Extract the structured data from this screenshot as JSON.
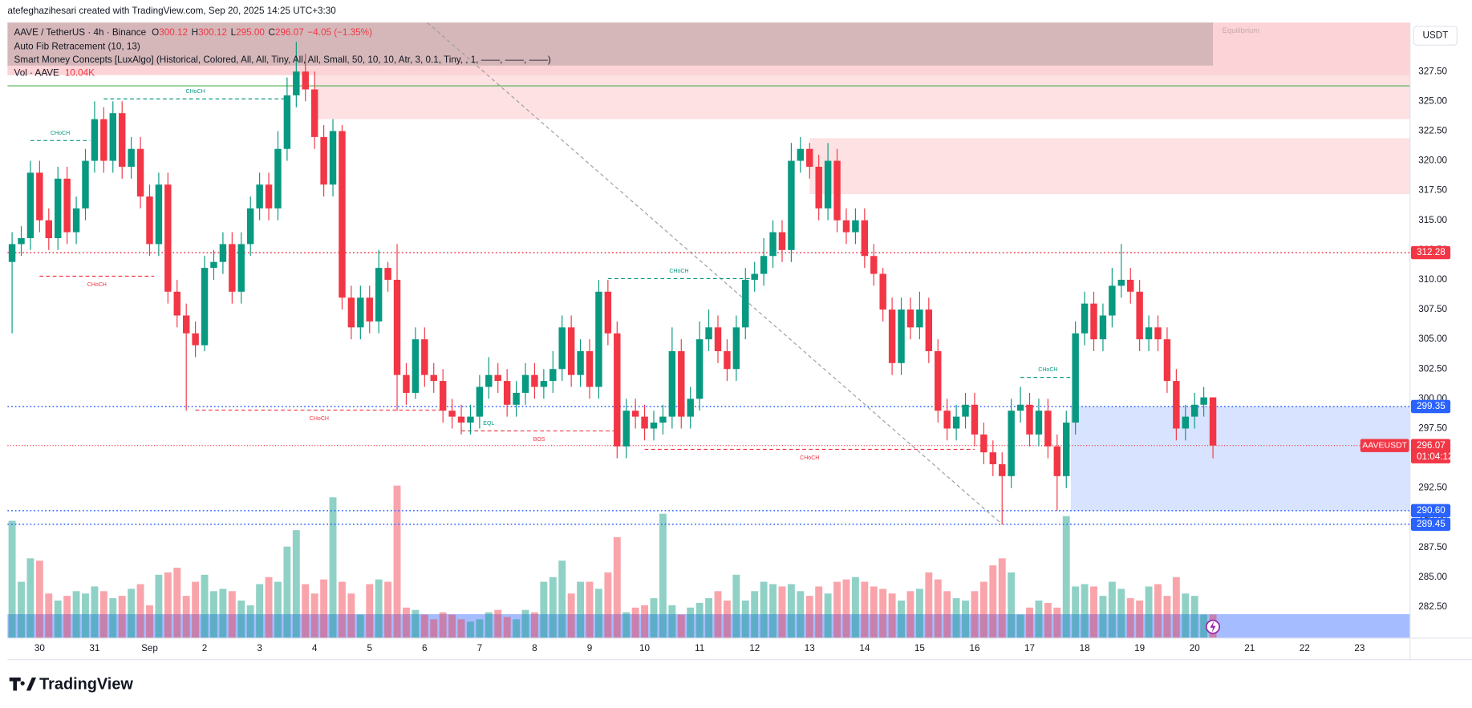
{
  "header": {
    "attribution": "atefeghazihesari created with TradingView.com, Sep 20, 2025 14:25 UTC+3:30",
    "brand": "TradingView"
  },
  "chart_data": {
    "type": "candlestick",
    "title": "AAVE / TetherUS · 4h · Binance",
    "legend": {
      "ohlc": [
        {
          "label": "O",
          "value": "300.12"
        },
        {
          "label": "H",
          "value": "300.12"
        },
        {
          "label": "L",
          "value": "295.00"
        },
        {
          "label": "C",
          "value": "296.07"
        }
      ],
      "change": "−4.05 (−1.35%)",
      "indicators": [
        "Auto Fib Retracement (10, 13)",
        "Smart Money Concepts [LuxAlgo] (Historical, Colored, All, All, Tiny, All, All, Small, 50, 10, 10, Atr, 3, 0.1, Tiny, , 1, ——, ——, ——)"
      ],
      "volume": {
        "label": "Vol · AAVE",
        "value": "10.04K"
      }
    },
    "currency": "USDT",
    "up_color": "#089981",
    "down_color": "#f23645",
    "volume_up_color": "rgba(8,153,129,0.45)",
    "volume_down_color": "rgba(242,54,69,0.45)",
    "grid": false,
    "xlim": [
      -0.5,
      152.5
    ],
    "ylim": [
      279.89,
      331.62
    ],
    "vlim": [
      0,
      262.4
    ],
    "xticks": [
      {
        "value": 3,
        "label": "30"
      },
      {
        "value": 9,
        "label": "31"
      },
      {
        "value": 15,
        "label": "Sep"
      },
      {
        "value": 21,
        "label": "2"
      },
      {
        "value": 27,
        "label": "3"
      },
      {
        "value": 33,
        "label": "4"
      },
      {
        "value": 39,
        "label": "5"
      },
      {
        "value": 45,
        "label": "6"
      },
      {
        "value": 51,
        "label": "7"
      },
      {
        "value": 57,
        "label": "8"
      },
      {
        "value": 63,
        "label": "9"
      },
      {
        "value": 69,
        "label": "10"
      },
      {
        "value": 75,
        "label": "11"
      },
      {
        "value": 81,
        "label": "12"
      },
      {
        "value": 87,
        "label": "13"
      },
      {
        "value": 93,
        "label": "14"
      },
      {
        "value": 99,
        "label": "15"
      },
      {
        "value": 105,
        "label": "16"
      },
      {
        "value": 111,
        "label": "17"
      },
      {
        "value": 117,
        "label": "18"
      },
      {
        "value": 123,
        "label": "19"
      },
      {
        "value": 129,
        "label": "20"
      },
      {
        "value": 135,
        "label": "21"
      },
      {
        "value": 141,
        "label": "22"
      },
      {
        "value": 147,
        "label": "23"
      }
    ],
    "yticks": [
      {
        "value": 282.5,
        "label": "282.50"
      },
      {
        "value": 285,
        "label": "285.00"
      },
      {
        "value": 287.5,
        "label": "287.50"
      },
      {
        "value": 290,
        "label": "290.00"
      },
      {
        "value": 292.5,
        "label": "292.50"
      },
      {
        "value": 295,
        "label": "295.00"
      },
      {
        "value": 297.5,
        "label": "297.50"
      },
      {
        "value": 300,
        "label": "300.00"
      },
      {
        "value": 302.5,
        "label": "302.50"
      },
      {
        "value": 305,
        "label": "305.00"
      },
      {
        "value": 307.5,
        "label": "307.50"
      },
      {
        "value": 310,
        "label": "310.00"
      },
      {
        "value": 312.5,
        "label": "312.50"
      },
      {
        "value": 315,
        "label": "315.00"
      },
      {
        "value": 317.5,
        "label": "317.50"
      },
      {
        "value": 320,
        "label": "320.00"
      },
      {
        "value": 322.5,
        "label": "322.50"
      },
      {
        "value": 325,
        "label": "325.00"
      },
      {
        "value": 327.5,
        "label": "327.50"
      }
    ],
    "open": [
      311.5,
      313,
      313.5,
      319,
      315,
      313.5,
      318.5,
      314,
      316,
      320,
      323.5,
      320,
      324,
      319.5,
      321,
      317,
      313,
      318,
      309,
      307,
      305.5,
      304.5,
      311,
      311.5,
      313,
      309,
      313,
      316,
      318,
      316,
      321,
      325.5,
      327.5,
      326,
      322,
      318,
      322.5,
      308.5,
      306,
      308.5,
      306.5,
      311,
      310,
      302,
      300.5,
      305,
      302,
      301.5,
      299,
      298.5,
      298,
      298.5,
      301,
      302,
      301.5,
      299.5,
      300.5,
      302,
      301,
      301.5,
      302.5,
      306,
      302,
      304,
      301,
      309,
      305.5,
      296,
      299,
      298.5,
      297.5,
      298,
      298.5,
      304,
      298.5,
      300,
      305,
      306,
      304,
      302.5,
      306,
      310,
      310.5,
      312,
      314,
      312.5,
      320,
      321,
      319.5,
      316,
      320,
      315,
      314,
      315,
      312,
      310.5,
      307.5,
      303,
      307.5,
      306,
      307.5,
      304,
      299,
      297.5,
      298.5,
      299.5,
      297,
      295.5,
      294.5,
      293.5,
      299,
      299.5,
      297,
      299,
      296,
      293.5,
      298,
      305.5,
      308,
      305,
      307,
      309.5,
      310,
      309,
      305,
      306,
      305,
      301.5,
      297.5,
      298.5,
      299.5,
      300.12
    ],
    "high": [
      314,
      314.5,
      320,
      320,
      316,
      319.5,
      319.5,
      317,
      321,
      325,
      324.5,
      325,
      325,
      322,
      322,
      318,
      319,
      319,
      310,
      308,
      306.5,
      312,
      312.5,
      314,
      314,
      314,
      317,
      319,
      319,
      322.5,
      327,
      330,
      329,
      327.5,
      323,
      323.5,
      323,
      309.5,
      309.5,
      309.5,
      312.5,
      311.5,
      313,
      303,
      306,
      306,
      303,
      302.5,
      300,
      299.5,
      299.5,
      302,
      303.5,
      303,
      302.5,
      301.5,
      303,
      303,
      302.5,
      304,
      307,
      307,
      305,
      305,
      310,
      310,
      306.5,
      300,
      300,
      299.5,
      299,
      299.5,
      306,
      305,
      301,
      306.5,
      307.5,
      307,
      305,
      307,
      311,
      311.5,
      313.5,
      315,
      315,
      321.5,
      322,
      321.5,
      320.5,
      321.5,
      321,
      316,
      316,
      316,
      313,
      311,
      308.5,
      308.5,
      308.5,
      309,
      308.5,
      305,
      300,
      299.5,
      300.5,
      300.5,
      298,
      296.5,
      295.5,
      300,
      301,
      300.5,
      300,
      300,
      297,
      299,
      306.5,
      309,
      309,
      308,
      311,
      313,
      311,
      310,
      307,
      307,
      306,
      302.5,
      299.5,
      300.5,
      301,
      300.12
    ],
    "low": [
      305.5,
      312,
      312.5,
      314,
      312.5,
      312.5,
      313,
      313,
      315,
      319,
      319,
      319,
      318.5,
      318.5,
      316,
      312,
      312,
      308,
      306,
      299,
      303.5,
      304,
      310,
      310.5,
      308,
      308,
      312,
      315,
      315,
      315,
      320,
      324.5,
      325,
      321,
      317,
      317,
      307.5,
      305,
      305,
      305.5,
      305.5,
      309,
      299,
      299.5,
      300,
      301,
      300.5,
      298,
      297.5,
      297,
      297,
      297.5,
      300,
      300.5,
      298.5,
      298.5,
      299.5,
      300,
      300,
      300.5,
      301.5,
      301,
      301,
      300,
      300,
      304.5,
      295,
      295,
      297.5,
      296.5,
      296.5,
      297,
      297.5,
      297.5,
      297.5,
      299,
      304,
      303,
      301.5,
      301.5,
      305,
      309,
      309.5,
      311,
      311.5,
      311.5,
      319,
      318.5,
      315,
      315,
      314,
      313,
      313,
      311,
      309.5,
      306.5,
      302,
      302,
      305,
      305,
      303,
      298,
      296.5,
      296.5,
      297.5,
      296,
      294.5,
      293.5,
      289.45,
      292.5,
      298,
      296,
      296,
      295,
      290.6,
      292.5,
      297,
      304.5,
      304,
      304,
      306,
      308.5,
      308,
      304,
      304,
      304,
      300.5,
      296.5,
      296.5,
      297.5,
      298.5,
      295
    ],
    "close": [
      313,
      313.5,
      319,
      315,
      313.5,
      318.5,
      314,
      316,
      320,
      323.5,
      320,
      324,
      319.5,
      321,
      317,
      313,
      318,
      309,
      307,
      305.5,
      304.5,
      311,
      311.5,
      313,
      309,
      313,
      316,
      318,
      316,
      321,
      325.5,
      327.5,
      326,
      322,
      318,
      322.5,
      308.5,
      306,
      308.5,
      306.5,
      311,
      310,
      302,
      300.5,
      305,
      302,
      301.5,
      299,
      298.5,
      298,
      298.5,
      301,
      302,
      301.5,
      299.5,
      300.5,
      302,
      301,
      301.5,
      302.5,
      306,
      302,
      304,
      301,
      309,
      305.5,
      296,
      299,
      298.5,
      297.5,
      298,
      298.5,
      304,
      298.5,
      300,
      305,
      306,
      304,
      302.5,
      306,
      310,
      310.5,
      312,
      314,
      312.5,
      320,
      321,
      319.5,
      316,
      320,
      315,
      314,
      315,
      312,
      310.5,
      307.5,
      303,
      307.5,
      306,
      307.5,
      304,
      299,
      297.5,
      298.5,
      299.5,
      297,
      295.5,
      294.5,
      293.5,
      299,
      299.5,
      297,
      299,
      296,
      293.5,
      298,
      305.5,
      308,
      305,
      307,
      309.5,
      310,
      309,
      305,
      306,
      305,
      301.5,
      297.5,
      298.5,
      299.5,
      300.12,
      296.07
    ],
    "volume": [
      50,
      24,
      34,
      33,
      19,
      16,
      18,
      20,
      19,
      22,
      20,
      17,
      18,
      21,
      23,
      14,
      27,
      28,
      30,
      18,
      24,
      27,
      20,
      21,
      20,
      16,
      14,
      23,
      26,
      24,
      39,
      46,
      23,
      19,
      25,
      60,
      24,
      19,
      10,
      23,
      25,
      24,
      65,
      13,
      12,
      10,
      8,
      11,
      10,
      8,
      7,
      8,
      11,
      12,
      9,
      8,
      12,
      11,
      24,
      26,
      33,
      19,
      24,
      24,
      21,
      28,
      43,
      11,
      13,
      14,
      17,
      53,
      14,
      10,
      13,
      15,
      17,
      20,
      16,
      27,
      16,
      20,
      24,
      23,
      22,
      23,
      20,
      18,
      22,
      19,
      24,
      25,
      26,
      24,
      22,
      21,
      19,
      16,
      20,
      21,
      28,
      25,
      20,
      17,
      16,
      20,
      24,
      31,
      34,
      28,
      10,
      13,
      16,
      15,
      13,
      52,
      22,
      23,
      22,
      18,
      24,
      21,
      17,
      16,
      22,
      23,
      18,
      26,
      19,
      18,
      10,
      10.04
    ],
    "zones": [
      {
        "from": -0.5,
        "to": 152.5,
        "low": 327.2,
        "high": 331.62,
        "color": "rgba(242,54,69,0.22)"
      },
      {
        "from": -0.5,
        "to": 131,
        "low": 328.0,
        "high": 331.62,
        "color": "rgba(110,110,110,0.28)",
        "label": "Equilibrium"
      },
      {
        "from": 33,
        "to": 152.5,
        "low": 323.5,
        "high": 327.2,
        "color": "rgba(242,54,69,0.15)"
      },
      {
        "from": 87,
        "to": 152.5,
        "low": 317.2,
        "high": 321.9,
        "color": "rgba(242,54,69,0.15)"
      },
      {
        "from": 115.5,
        "to": 152.5,
        "low": 290.6,
        "high": 299.35,
        "color": "rgba(41,98,255,0.18)"
      },
      {
        "from": -0.5,
        "to": 152.5,
        "low": 279.89,
        "high": 281.9,
        "color": "rgba(41,98,255,0.42)"
      }
    ],
    "levels": [
      {
        "value": 326.3,
        "color": "#4caf50"
      }
    ],
    "trendline": {
      "x": [
        45.3,
        108
      ],
      "y": [
        331.62,
        289.45
      ],
      "color": "#9e9e9e"
    },
    "structures": [
      {
        "label": "CHoCH",
        "x": [
          2,
          8.5
        ],
        "price": 321.7,
        "color": "#089981"
      },
      {
        "label": "CHoCH",
        "x": [
          10,
          30
        ],
        "price": 325.2,
        "color": "#089981"
      },
      {
        "label": "CHoCH",
        "x": [
          3,
          15.5
        ],
        "price": 310.3,
        "color": "#f23645"
      },
      {
        "label": "CHoCH",
        "x": [
          20,
          47
        ],
        "price": 299.05,
        "color": "#f23645"
      },
      {
        "label": "EQL",
        "x": [
          49,
          55
        ],
        "price": 297.3,
        "color": "#089981"
      },
      {
        "label": "BOS",
        "x": [
          49,
          66
        ],
        "price": 297.3,
        "color": "#f23645"
      },
      {
        "label": "CHoCH",
        "x": [
          65,
          80.5
        ],
        "price": 310.1,
        "color": "#089981"
      },
      {
        "label": "CHoCH",
        "x": [
          69,
          105
        ],
        "price": 295.75,
        "color": "#f23645"
      },
      {
        "label": "CHoCH",
        "x": [
          110,
          116
        ],
        "price": 301.8,
        "color": "#089981"
      }
    ],
    "price_lines": [
      {
        "value": 312.28,
        "label": "312.28",
        "color": "#f23645"
      },
      {
        "value": 299.35,
        "label": "299.35",
        "color": "#2962ff"
      },
      {
        "value": 290.6,
        "label": "290.60",
        "color": "#2962ff"
      },
      {
        "value": 289.45,
        "label": "289.45",
        "color": "#2962ff"
      }
    ],
    "last_price": {
      "symbol": "AAVEUSDT",
      "value": 296.07,
      "label": "296.07",
      "countdown": "01:04:12",
      "color": "#f23645"
    }
  }
}
